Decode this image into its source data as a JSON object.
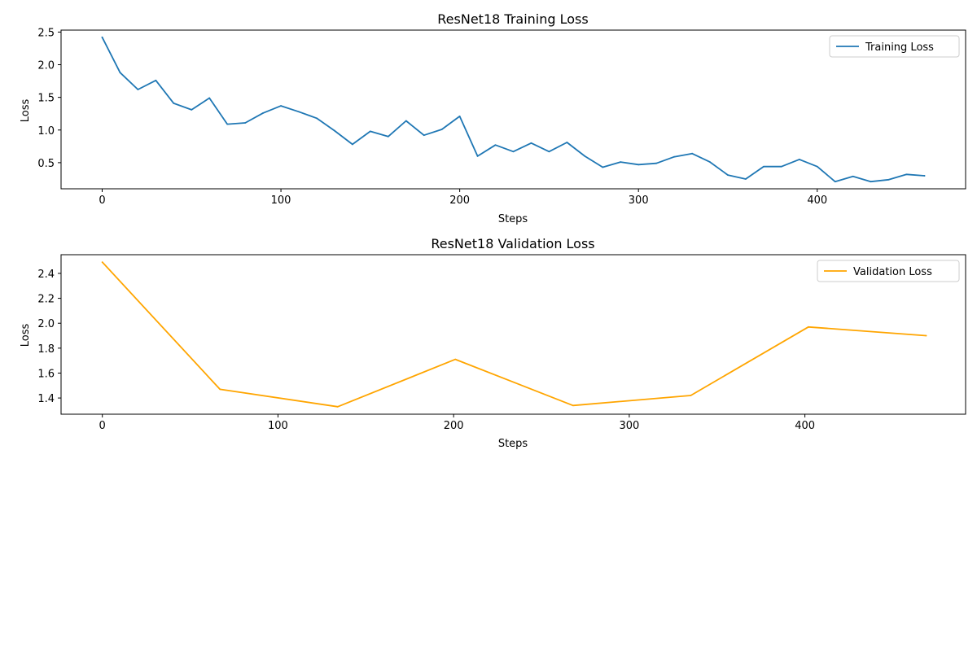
{
  "chart_data": [
    {
      "type": "line",
      "title": "ResNet18 Training Loss",
      "xlabel": "Steps",
      "ylabel": "Loss",
      "xlim": [
        -23,
        483
      ],
      "ylim": [
        0.1,
        2.53
      ],
      "xticks": [
        0,
        100,
        200,
        300,
        400
      ],
      "yticks": [
        0.5,
        1.0,
        1.5,
        2.0,
        2.5
      ],
      "grid": false,
      "legend_position": "top-right",
      "series": [
        {
          "name": "Training Loss",
          "color": "#1f77b4",
          "x": [
            0,
            10,
            20,
            30,
            40,
            50,
            60,
            70,
            80,
            90,
            100,
            110,
            120,
            130,
            140,
            150,
            160,
            170,
            180,
            190,
            200,
            210,
            220,
            230,
            240,
            250,
            260,
            270,
            280,
            290,
            300,
            310,
            320,
            330,
            340,
            350,
            360,
            370,
            380,
            390,
            400,
            410,
            420,
            430,
            440,
            450,
            460
          ],
          "values": [
            2.42,
            1.88,
            1.62,
            1.76,
            1.41,
            1.31,
            1.49,
            1.09,
            1.11,
            1.26,
            1.37,
            1.28,
            1.18,
            0.99,
            0.78,
            0.98,
            0.9,
            1.14,
            0.92,
            1.01,
            1.21,
            0.6,
            0.77,
            0.67,
            0.8,
            0.67,
            0.81,
            0.6,
            0.43,
            0.51,
            0.47,
            0.49,
            0.59,
            0.64,
            0.51,
            0.31,
            0.25,
            0.44,
            0.44,
            0.55,
            0.44,
            0.21,
            0.29,
            0.21,
            0.24,
            0.32,
            0.3
          ]
        }
      ]
    },
    {
      "type": "line",
      "title": "ResNet18 Validation Loss",
      "xlabel": "Steps",
      "ylabel": "Loss",
      "xlim": [
        -23.5,
        491.5
      ],
      "ylim": [
        1.27,
        2.55
      ],
      "xticks": [
        0,
        100,
        200,
        300,
        400
      ],
      "yticks": [
        1.4,
        1.6,
        1.8,
        2.0,
        2.2,
        2.4
      ],
      "grid": false,
      "legend_position": "top-right",
      "series": [
        {
          "name": "Validation Loss",
          "color": "#ffa500",
          "x": [
            0,
            67,
            134,
            201,
            268,
            335,
            402,
            469
          ],
          "values": [
            2.49,
            1.47,
            1.33,
            1.71,
            1.34,
            1.42,
            1.97,
            1.9
          ]
        }
      ]
    }
  ]
}
